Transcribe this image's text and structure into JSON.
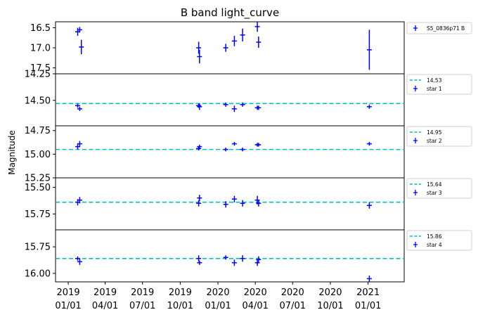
{
  "chart_data": {
    "type": "scatter",
    "title": "B band light_curve",
    "ylabel": "Magnitude",
    "xlabel": "",
    "x_axis": {
      "scale": "date",
      "xlim": [
        "2018-12-01",
        "2021-03-30"
      ],
      "ticks": [
        {
          "date": "2019-01-01",
          "label": [
            "2019",
            "01/01"
          ]
        },
        {
          "date": "2019-04-01",
          "label": [
            "2019",
            "04/01"
          ]
        },
        {
          "date": "2019-07-01",
          "label": [
            "2019",
            "07/01"
          ]
        },
        {
          "date": "2019-10-01",
          "label": [
            "2019",
            "10/01"
          ]
        },
        {
          "date": "2020-01-01",
          "label": [
            "2020",
            "01/01"
          ]
        },
        {
          "date": "2020-04-01",
          "label": [
            "2020",
            "04/01"
          ]
        },
        {
          "date": "2020-07-01",
          "label": [
            "2020",
            "07/01"
          ]
        },
        {
          "date": "2020-10-01",
          "label": [
            "2020",
            "10/01"
          ]
        },
        {
          "date": "2021-01-01",
          "label": [
            "2021",
            "01/01"
          ]
        }
      ]
    },
    "colors": {
      "points": "#0000ff",
      "reference_line": "#00bfbf",
      "axes": "#000000"
    },
    "legend_position": "outside-right",
    "panels": [
      {
        "name": "S5_0836p71 B",
        "ylim": [
          16.35,
          17.65
        ],
        "inverted": true,
        "yticks": [
          16.5,
          17.0,
          17.5
        ],
        "yticklabels": [
          "16.5",
          "17.0",
          "17.5"
        ],
        "reference": null,
        "points": [
          {
            "x": "2019-01-24",
            "y": 16.6,
            "yerr": 0.1
          },
          {
            "x": "2019-01-29",
            "y": 16.55,
            "yerr": 0.07
          },
          {
            "x": "2019-02-02",
            "y": 16.98,
            "yerr": 0.18
          },
          {
            "x": "2019-11-15",
            "y": 17.0,
            "yerr": 0.15
          },
          {
            "x": "2019-11-17",
            "y": 17.22,
            "yerr": 0.17
          },
          {
            "x": "2020-01-20",
            "y": 17.0,
            "yerr": 0.1
          },
          {
            "x": "2020-02-10",
            "y": 16.83,
            "yerr": 0.13
          },
          {
            "x": "2020-03-01",
            "y": 16.68,
            "yerr": 0.16
          },
          {
            "x": "2020-04-06",
            "y": 16.47,
            "yerr": 0.13
          },
          {
            "x": "2020-04-09",
            "y": 16.86,
            "yerr": 0.14
          },
          {
            "x": "2021-01-04",
            "y": 17.05,
            "yerr": 0.5
          }
        ]
      },
      {
        "name": "star 1",
        "ylim": [
          14.25,
          14.74
        ],
        "inverted": true,
        "yticks": [
          14.25,
          14.5
        ],
        "yticklabels": [
          "14.25",
          "14.50"
        ],
        "reference": {
          "value": 14.53,
          "label": "14.53"
        },
        "points": [
          {
            "x": "2019-01-24",
            "y": 14.55,
            "yerr": 0.02
          },
          {
            "x": "2019-01-29",
            "y": 14.58,
            "yerr": 0.02
          },
          {
            "x": "2019-11-15",
            "y": 14.55,
            "yerr": 0.02
          },
          {
            "x": "2019-11-17",
            "y": 14.56,
            "yerr": 0.03
          },
          {
            "x": "2020-01-20",
            "y": 14.54,
            "yerr": 0.02
          },
          {
            "x": "2020-02-10",
            "y": 14.58,
            "yerr": 0.03
          },
          {
            "x": "2020-03-01",
            "y": 14.54,
            "yerr": 0.02
          },
          {
            "x": "2020-04-06",
            "y": 14.57,
            "yerr": 0.02
          },
          {
            "x": "2020-04-09",
            "y": 14.57,
            "yerr": 0.02
          },
          {
            "x": "2021-01-04",
            "y": 14.56,
            "yerr": 0.02
          }
        ]
      },
      {
        "name": "star 2",
        "ylim": [
          14.7,
          15.25
        ],
        "inverted": true,
        "yticks": [
          14.75,
          15.0,
          15.25
        ],
        "yticklabels": [
          "14.75",
          "15.00",
          "15.25"
        ],
        "reference": {
          "value": 14.95,
          "label": "14.95"
        },
        "points": [
          {
            "x": "2019-01-24",
            "y": 14.92,
            "yerr": 0.03
          },
          {
            "x": "2019-01-29",
            "y": 14.89,
            "yerr": 0.03
          },
          {
            "x": "2019-11-15",
            "y": 14.94,
            "yerr": 0.02
          },
          {
            "x": "2019-11-17",
            "y": 14.92,
            "yerr": 0.02
          },
          {
            "x": "2020-01-20",
            "y": 14.95,
            "yerr": 0.02
          },
          {
            "x": "2020-02-10",
            "y": 14.89,
            "yerr": 0.02
          },
          {
            "x": "2020-03-01",
            "y": 14.95,
            "yerr": 0.02
          },
          {
            "x": "2020-04-06",
            "y": 14.9,
            "yerr": 0.02
          },
          {
            "x": "2020-04-09",
            "y": 14.9,
            "yerr": 0.02
          },
          {
            "x": "2021-01-04",
            "y": 14.89,
            "yerr": 0.02
          }
        ]
      },
      {
        "name": "star 3",
        "ylim": [
          15.41,
          15.9
        ],
        "inverted": true,
        "yticks": [
          15.5,
          15.75
        ],
        "yticklabels": [
          "15.50",
          "15.75"
        ],
        "reference": {
          "value": 15.64,
          "label": "15.64"
        },
        "points": [
          {
            "x": "2019-01-24",
            "y": 15.64,
            "yerr": 0.03
          },
          {
            "x": "2019-01-29",
            "y": 15.62,
            "yerr": 0.03
          },
          {
            "x": "2019-11-15",
            "y": 15.65,
            "yerr": 0.03
          },
          {
            "x": "2019-11-17",
            "y": 15.6,
            "yerr": 0.03
          },
          {
            "x": "2020-01-20",
            "y": 15.66,
            "yerr": 0.03
          },
          {
            "x": "2020-02-10",
            "y": 15.61,
            "yerr": 0.03
          },
          {
            "x": "2020-03-01",
            "y": 15.65,
            "yerr": 0.03
          },
          {
            "x": "2020-04-06",
            "y": 15.62,
            "yerr": 0.04
          },
          {
            "x": "2020-04-09",
            "y": 15.65,
            "yerr": 0.03
          },
          {
            "x": "2021-01-04",
            "y": 15.67,
            "yerr": 0.03
          }
        ]
      },
      {
        "name": "star 4",
        "ylim": [
          15.59,
          16.08
        ],
        "inverted": true,
        "yticks": [
          15.75,
          16.0
        ],
        "yticklabels": [
          "15.75",
          "16.00"
        ],
        "reference": {
          "value": 15.86,
          "label": "15.86"
        },
        "points": [
          {
            "x": "2019-01-24",
            "y": 15.86,
            "yerr": 0.02
          },
          {
            "x": "2019-01-29",
            "y": 15.89,
            "yerr": 0.03
          },
          {
            "x": "2019-11-15",
            "y": 15.86,
            "yerr": 0.03
          },
          {
            "x": "2019-11-17",
            "y": 15.9,
            "yerr": 0.02
          },
          {
            "x": "2020-01-20",
            "y": 15.85,
            "yerr": 0.02
          },
          {
            "x": "2020-02-10",
            "y": 15.9,
            "yerr": 0.03
          },
          {
            "x": "2020-03-01",
            "y": 15.86,
            "yerr": 0.03
          },
          {
            "x": "2020-04-06",
            "y": 15.9,
            "yerr": 0.03
          },
          {
            "x": "2020-04-09",
            "y": 15.87,
            "yerr": 0.03
          },
          {
            "x": "2021-01-04",
            "y": 16.05,
            "yerr": 0.03
          }
        ]
      }
    ]
  }
}
